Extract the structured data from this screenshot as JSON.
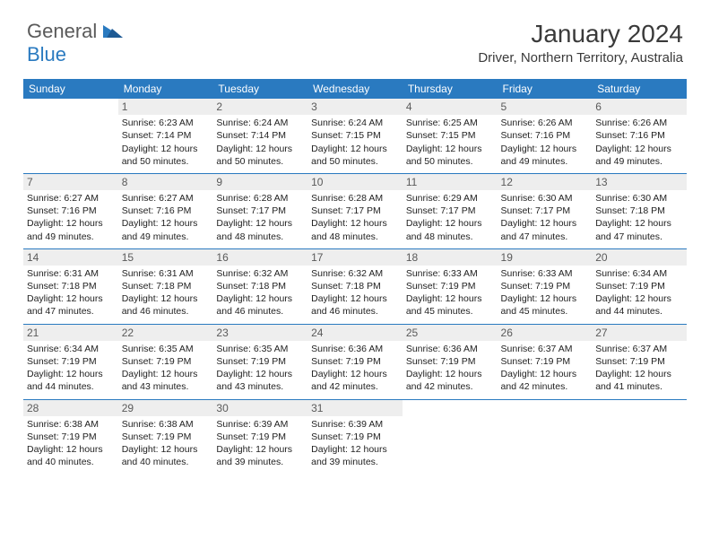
{
  "logo": {
    "word1": "General",
    "word2": "Blue"
  },
  "title": "January 2024",
  "location": "Driver, Northern Territory, Australia",
  "colors": {
    "header_bg": "#2a7ac0",
    "header_text": "#ffffff",
    "daynum_bg": "#eeeeee",
    "daynum_text": "#5a5a5a",
    "cell_text": "#222222",
    "logo_gray": "#5a5a5a",
    "logo_blue": "#2a7ac0",
    "row_divider": "#2a7ac0"
  },
  "typography": {
    "title_fontsize": 28,
    "location_fontsize": 15,
    "header_fontsize": 12,
    "daynum_fontsize": 12,
    "cell_fontsize": 10.5,
    "logo_fontsize": 22
  },
  "days": [
    "Sunday",
    "Monday",
    "Tuesday",
    "Wednesday",
    "Thursday",
    "Friday",
    "Saturday"
  ],
  "grid": [
    [
      null,
      {
        "n": "1",
        "sunrise": "6:23 AM",
        "sunset": "7:14 PM",
        "dl": "12 hours and 50 minutes."
      },
      {
        "n": "2",
        "sunrise": "6:24 AM",
        "sunset": "7:14 PM",
        "dl": "12 hours and 50 minutes."
      },
      {
        "n": "3",
        "sunrise": "6:24 AM",
        "sunset": "7:15 PM",
        "dl": "12 hours and 50 minutes."
      },
      {
        "n": "4",
        "sunrise": "6:25 AM",
        "sunset": "7:15 PM",
        "dl": "12 hours and 50 minutes."
      },
      {
        "n": "5",
        "sunrise": "6:26 AM",
        "sunset": "7:16 PM",
        "dl": "12 hours and 49 minutes."
      },
      {
        "n": "6",
        "sunrise": "6:26 AM",
        "sunset": "7:16 PM",
        "dl": "12 hours and 49 minutes."
      }
    ],
    [
      {
        "n": "7",
        "sunrise": "6:27 AM",
        "sunset": "7:16 PM",
        "dl": "12 hours and 49 minutes."
      },
      {
        "n": "8",
        "sunrise": "6:27 AM",
        "sunset": "7:16 PM",
        "dl": "12 hours and 49 minutes."
      },
      {
        "n": "9",
        "sunrise": "6:28 AM",
        "sunset": "7:17 PM",
        "dl": "12 hours and 48 minutes."
      },
      {
        "n": "10",
        "sunrise": "6:28 AM",
        "sunset": "7:17 PM",
        "dl": "12 hours and 48 minutes."
      },
      {
        "n": "11",
        "sunrise": "6:29 AM",
        "sunset": "7:17 PM",
        "dl": "12 hours and 48 minutes."
      },
      {
        "n": "12",
        "sunrise": "6:30 AM",
        "sunset": "7:17 PM",
        "dl": "12 hours and 47 minutes."
      },
      {
        "n": "13",
        "sunrise": "6:30 AM",
        "sunset": "7:18 PM",
        "dl": "12 hours and 47 minutes."
      }
    ],
    [
      {
        "n": "14",
        "sunrise": "6:31 AM",
        "sunset": "7:18 PM",
        "dl": "12 hours and 47 minutes."
      },
      {
        "n": "15",
        "sunrise": "6:31 AM",
        "sunset": "7:18 PM",
        "dl": "12 hours and 46 minutes."
      },
      {
        "n": "16",
        "sunrise": "6:32 AM",
        "sunset": "7:18 PM",
        "dl": "12 hours and 46 minutes."
      },
      {
        "n": "17",
        "sunrise": "6:32 AM",
        "sunset": "7:18 PM",
        "dl": "12 hours and 46 minutes."
      },
      {
        "n": "18",
        "sunrise": "6:33 AM",
        "sunset": "7:19 PM",
        "dl": "12 hours and 45 minutes."
      },
      {
        "n": "19",
        "sunrise": "6:33 AM",
        "sunset": "7:19 PM",
        "dl": "12 hours and 45 minutes."
      },
      {
        "n": "20",
        "sunrise": "6:34 AM",
        "sunset": "7:19 PM",
        "dl": "12 hours and 44 minutes."
      }
    ],
    [
      {
        "n": "21",
        "sunrise": "6:34 AM",
        "sunset": "7:19 PM",
        "dl": "12 hours and 44 minutes."
      },
      {
        "n": "22",
        "sunrise": "6:35 AM",
        "sunset": "7:19 PM",
        "dl": "12 hours and 43 minutes."
      },
      {
        "n": "23",
        "sunrise": "6:35 AM",
        "sunset": "7:19 PM",
        "dl": "12 hours and 43 minutes."
      },
      {
        "n": "24",
        "sunrise": "6:36 AM",
        "sunset": "7:19 PM",
        "dl": "12 hours and 42 minutes."
      },
      {
        "n": "25",
        "sunrise": "6:36 AM",
        "sunset": "7:19 PM",
        "dl": "12 hours and 42 minutes."
      },
      {
        "n": "26",
        "sunrise": "6:37 AM",
        "sunset": "7:19 PM",
        "dl": "12 hours and 42 minutes."
      },
      {
        "n": "27",
        "sunrise": "6:37 AM",
        "sunset": "7:19 PM",
        "dl": "12 hours and 41 minutes."
      }
    ],
    [
      {
        "n": "28",
        "sunrise": "6:38 AM",
        "sunset": "7:19 PM",
        "dl": "12 hours and 40 minutes."
      },
      {
        "n": "29",
        "sunrise": "6:38 AM",
        "sunset": "7:19 PM",
        "dl": "12 hours and 40 minutes."
      },
      {
        "n": "30",
        "sunrise": "6:39 AM",
        "sunset": "7:19 PM",
        "dl": "12 hours and 39 minutes."
      },
      {
        "n": "31",
        "sunrise": "6:39 AM",
        "sunset": "7:19 PM",
        "dl": "12 hours and 39 minutes."
      },
      null,
      null,
      null
    ]
  ]
}
